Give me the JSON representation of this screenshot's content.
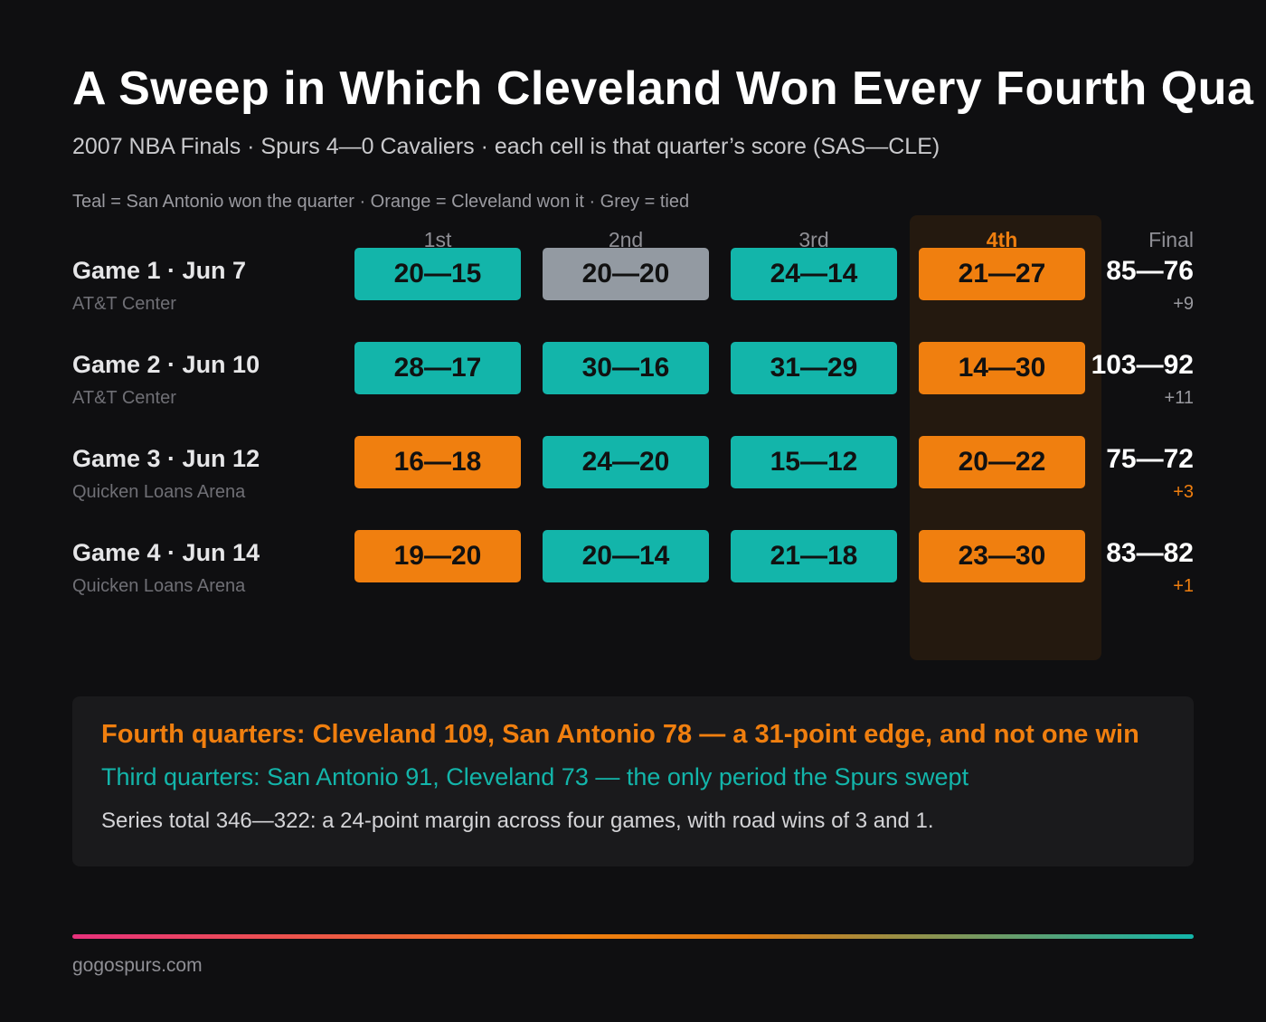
{
  "title": "A Sweep in Which Cleveland Won Every Fourth Qua",
  "subtitle": "2007 NBA Finals · Spurs 4—0 Cavaliers · each cell is that quarter’s score (SAS—CLE)",
  "legend_text": "Teal = San Antonio won the quarter · Orange = Cleveland won it · Grey = tied",
  "colors": {
    "sas_won": "#13b5aa",
    "cle_won": "#f07f0f",
    "tied": "#939aa2",
    "highlight_column": "#24190f"
  },
  "chart_data": {
    "type": "table",
    "columns": [
      "1st",
      "2nd",
      "3rd",
      "4th",
      "Final"
    ],
    "highlighted_column": "4th",
    "rows": [
      {
        "game": "Game 1 · Jun 7",
        "venue": "AT&T Center",
        "quarters": [
          {
            "score": "20—15",
            "sas": 20,
            "cle": 15,
            "winner": "SAS"
          },
          {
            "score": "20—20",
            "sas": 20,
            "cle": 20,
            "winner": "tie"
          },
          {
            "score": "24—14",
            "sas": 24,
            "cle": 14,
            "winner": "SAS"
          },
          {
            "score": "21—27",
            "sas": 21,
            "cle": 27,
            "winner": "CLE"
          }
        ],
        "final": "85—76",
        "margin": "+9",
        "margin_color": "#9a9aa0"
      },
      {
        "game": "Game 2 · Jun 10",
        "venue": "AT&T Center",
        "quarters": [
          {
            "score": "28—17",
            "sas": 28,
            "cle": 17,
            "winner": "SAS"
          },
          {
            "score": "30—16",
            "sas": 30,
            "cle": 16,
            "winner": "SAS"
          },
          {
            "score": "31—29",
            "sas": 31,
            "cle": 29,
            "winner": "SAS"
          },
          {
            "score": "14—30",
            "sas": 14,
            "cle": 30,
            "winner": "CLE"
          }
        ],
        "final": "103—92",
        "margin": "+11",
        "margin_color": "#9a9aa0"
      },
      {
        "game": "Game 3 · Jun 12",
        "venue": "Quicken Loans Arena",
        "quarters": [
          {
            "score": "16—18",
            "sas": 16,
            "cle": 18,
            "winner": "CLE"
          },
          {
            "score": "24—20",
            "sas": 24,
            "cle": 20,
            "winner": "SAS"
          },
          {
            "score": "15—12",
            "sas": 15,
            "cle": 12,
            "winner": "SAS"
          },
          {
            "score": "20—22",
            "sas": 20,
            "cle": 22,
            "winner": "CLE"
          }
        ],
        "final": "75—72",
        "margin": "+3",
        "margin_color": "#f07f0f"
      },
      {
        "game": "Game 4 · Jun 14",
        "venue": "Quicken Loans Arena",
        "quarters": [
          {
            "score": "19—20",
            "sas": 19,
            "cle": 20,
            "winner": "CLE"
          },
          {
            "score": "20—14",
            "sas": 20,
            "cle": 14,
            "winner": "SAS"
          },
          {
            "score": "21—18",
            "sas": 21,
            "cle": 18,
            "winner": "SAS"
          },
          {
            "score": "23—30",
            "sas": 23,
            "cle": 30,
            "winner": "CLE"
          }
        ],
        "final": "83—82",
        "margin": "+1",
        "margin_color": "#f07f0f"
      }
    ]
  },
  "notes": {
    "fourth": "Fourth quarters: Cleveland 109, San Antonio 78 — a 31-point edge, and not one win",
    "third": "Third quarters: San Antonio 91, Cleveland 73 — the only period the Spurs swept",
    "total": "Series total 346—322: a 24-point margin across four games, with road wins of 3 and 1."
  },
  "source": "gogospurs.com"
}
